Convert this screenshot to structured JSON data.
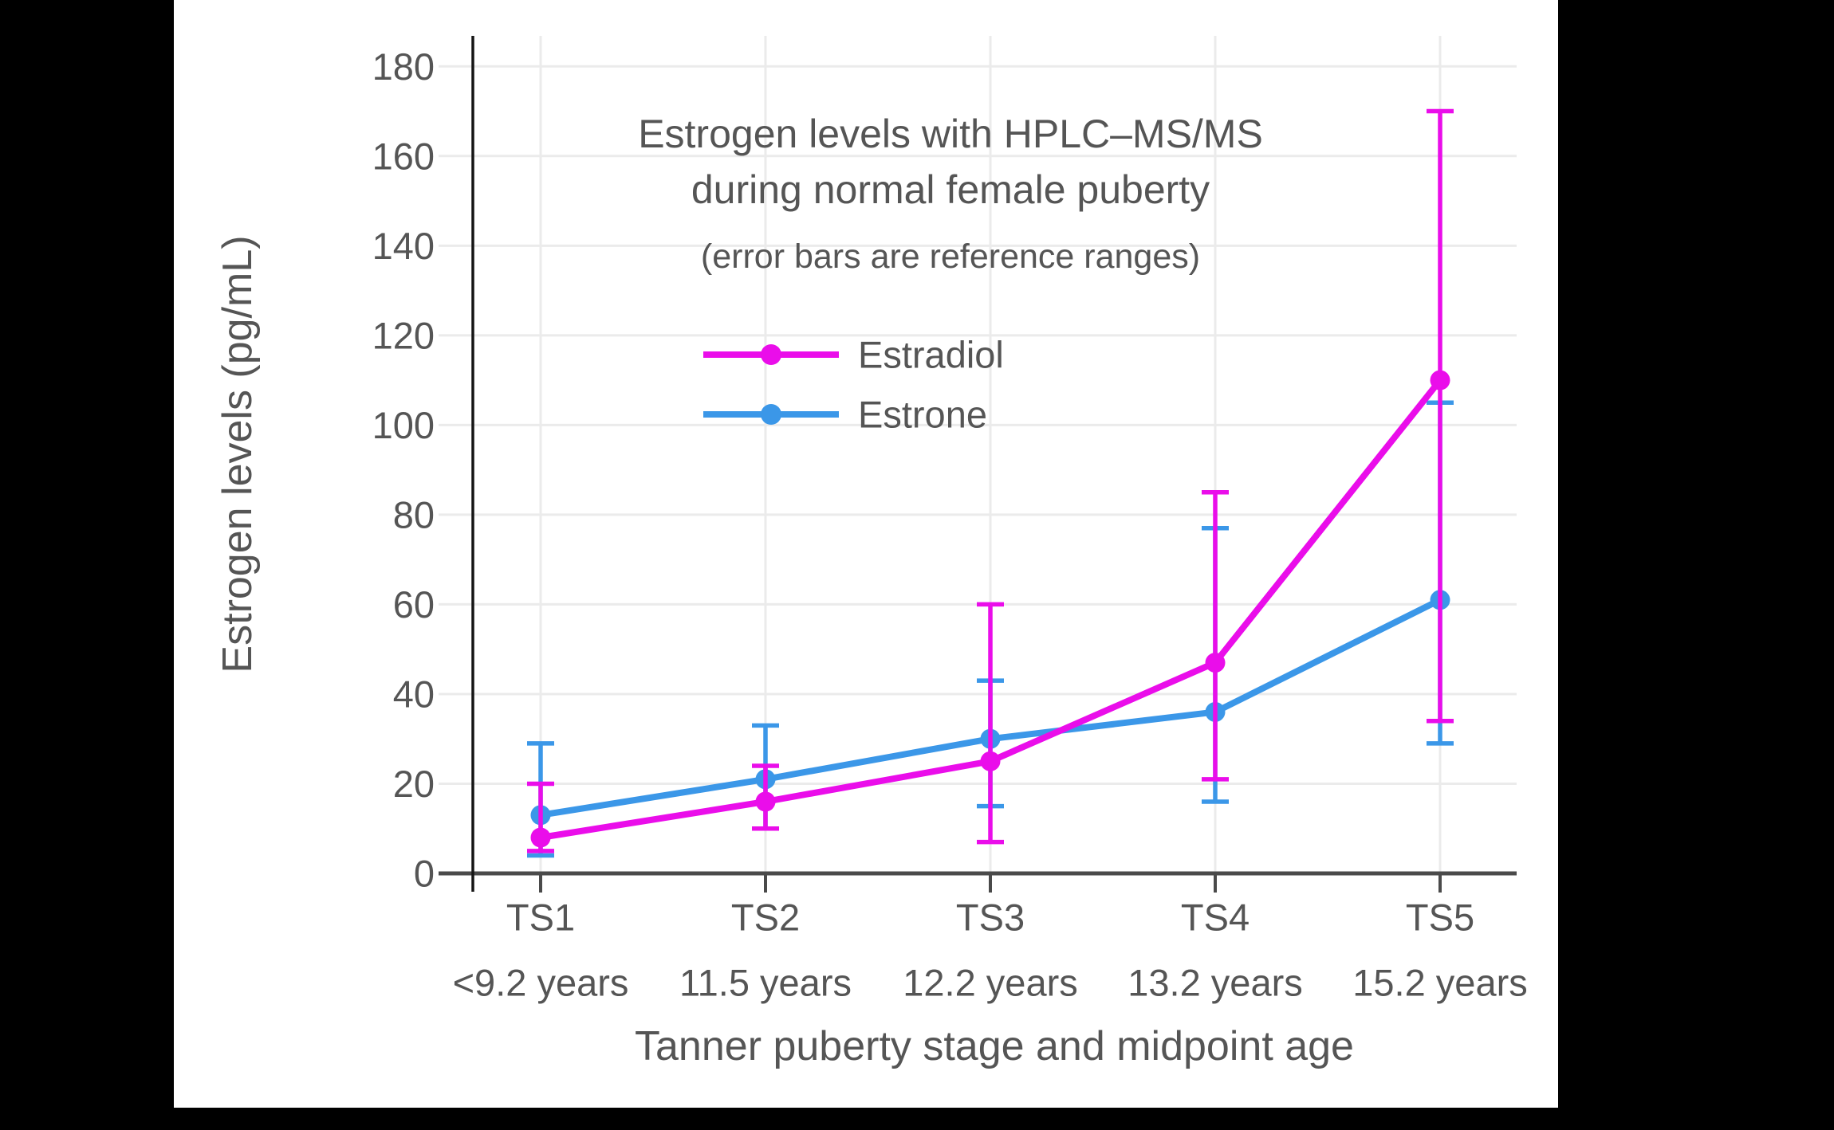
{
  "theme": {
    "letterbox_color": "#000000",
    "panel_color": "#ffffff",
    "text_color": "#555555",
    "grid_color": "#ebebeb",
    "axis_color": "#4a4a4a",
    "spine_color": "#151515",
    "estradiol_color": "#EA0DEA",
    "estrone_color": "#3B97E8"
  },
  "chart_data": {
    "type": "line",
    "title_line1": "Estrogen levels with HPLC–MS/MS",
    "title_line2": "during normal female puberty",
    "subtitle": "(error bars are reference ranges)",
    "xlabel": "Tanner puberty stage and midpoint age",
    "ylabel": "Estrogen levels (pg/mL)",
    "categories": [
      "TS1",
      "TS2",
      "TS3",
      "TS4",
      "TS5"
    ],
    "category_sublabels": [
      "<9.2 years",
      "11.5 years",
      "12.2 years",
      "13.2 years",
      "15.2 years"
    ],
    "yticks": [
      0,
      20,
      40,
      60,
      80,
      100,
      120,
      140,
      160,
      180
    ],
    "ylim": [
      0,
      186.8
    ],
    "grid": true,
    "legend_position": "upper-center-inside",
    "error_bar_meaning": "reference ranges",
    "series": [
      {
        "name": "Estradiol",
        "color_key": "estradiol_color",
        "values": [
          8,
          16,
          25,
          47,
          110
        ],
        "error_low": [
          5,
          10,
          7,
          21,
          34
        ],
        "error_high": [
          20,
          24,
          60,
          85,
          170
        ]
      },
      {
        "name": "Estrone",
        "color_key": "estrone_color",
        "values": [
          13,
          21,
          30,
          36,
          61
        ],
        "error_low": [
          4,
          10,
          15,
          16,
          29
        ],
        "error_high": [
          29,
          33,
          43,
          77,
          105
        ]
      }
    ]
  }
}
